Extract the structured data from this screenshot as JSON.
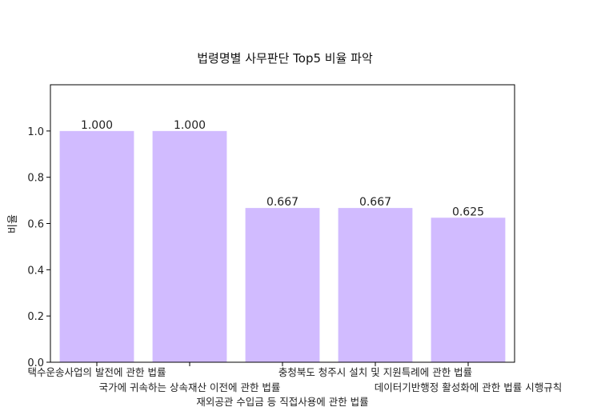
{
  "chart_data": {
    "type": "bar",
    "title": "법령명별 사무판단 Top5 비율 파악",
    "xlabel": "",
    "ylabel": "비율",
    "ylim": [
      0,
      1.2
    ],
    "yticks": [
      "0.0",
      "0.2",
      "0.4",
      "0.6",
      "0.8",
      "1.0"
    ],
    "grid": false,
    "categories": [
      "택수운송사업의 발전에 관한 법률",
      "국가에 귀속하는 상속재산 이전에 관한 법률",
      "재외공관 수입금 등 직접사용에 관한 법률",
      "충청북도 청주시 설치 및 지원특례에 관한 법률",
      "데이터기반행정 활성화에 관한 법률 시행규칙"
    ],
    "values": [
      1.0,
      1.0,
      0.667,
      0.667,
      0.625
    ],
    "value_labels": [
      "1.000",
      "1.000",
      "0.667",
      "0.667",
      "0.625"
    ],
    "bar_color": "#d1bbff"
  }
}
